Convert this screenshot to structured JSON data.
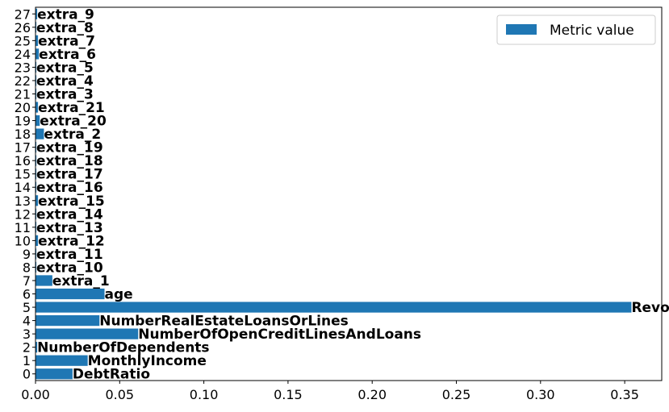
{
  "chart_data": {
    "type": "bar",
    "orientation": "horizontal",
    "y_ticks": [
      "0",
      "1",
      "2",
      "3",
      "4",
      "5",
      "6",
      "7",
      "8",
      "9",
      "10",
      "11",
      "12",
      "13",
      "14",
      "15",
      "16",
      "17",
      "18",
      "19",
      "20",
      "21",
      "22",
      "23",
      "24",
      "25",
      "26",
      "27"
    ],
    "categories": [
      "DebtRatio",
      "MonthlyIncome",
      "NumberOfDependents",
      "NumberOfOpenCreditLinesAndLoans",
      "NumberRealEstateLoansOrLines",
      "RevolvingUtilizationOfUnsecuredLines",
      "age",
      "extra_1",
      "extra_10",
      "extra_11",
      "extra_12",
      "extra_13",
      "extra_14",
      "extra_15",
      "extra_16",
      "extra_17",
      "extra_18",
      "extra_19",
      "extra_2",
      "extra_20",
      "extra_21",
      "extra_3",
      "extra_4",
      "extra_5",
      "extra_6",
      "extra_7",
      "extra_8",
      "extra_9"
    ],
    "series": [
      {
        "name": "Metric value",
        "color": "#1f77b4",
        "values": [
          0.022,
          0.031,
          0.001,
          0.061,
          0.038,
          0.354,
          0.041,
          0.01,
          0.0005,
          0.0005,
          0.0015,
          0.0005,
          0.0005,
          0.0015,
          0.0005,
          0.0005,
          0.0005,
          0.0005,
          0.005,
          0.0025,
          0.0015,
          0.0005,
          0.0005,
          0.0005,
          0.002,
          0.0015,
          0.0005,
          0.001
        ]
      }
    ],
    "x_ticks": [
      "0.00",
      "0.05",
      "0.10",
      "0.15",
      "0.20",
      "0.25",
      "0.30",
      "0.35"
    ],
    "xlim": [
      0,
      0.372
    ],
    "legend": {
      "position": "top-right",
      "label": "Metric value"
    },
    "grid": false
  }
}
